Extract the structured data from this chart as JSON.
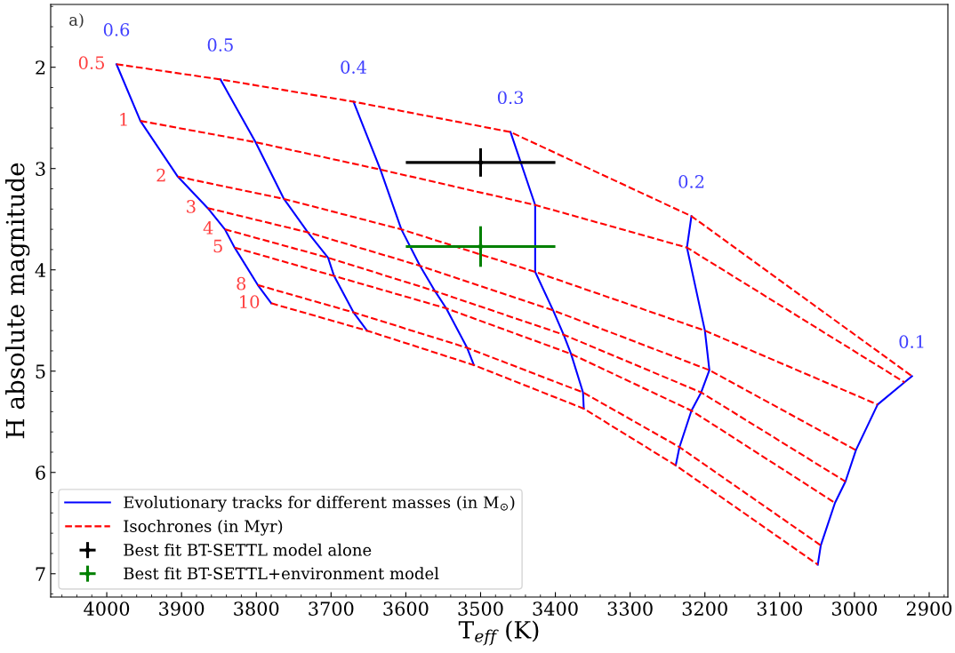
{
  "chart_data": {
    "type": "line",
    "xlabel": "T$_{eff}$ (K)",
    "ylabel": "H absolute magnitude",
    "xlim": [
      4075,
      2875
    ],
    "ylim": [
      7.23,
      1.38
    ],
    "xticks": [
      4000,
      3900,
      3800,
      3700,
      3600,
      3500,
      3400,
      3300,
      3200,
      3100,
      3000,
      2900
    ],
    "yticks": [
      2,
      3,
      4,
      5,
      6,
      7
    ],
    "grid": false,
    "legend": "bottom left",
    "marker": "none",
    "series": [
      {
        "name": "Evolutionary tracks for different masses (in M$_{⊙}$)",
        "color": "#0000ff",
        "line_style": "solid",
        "x": [
          3987,
          3955,
          3905,
          3865,
          3842,
          3829,
          3798,
          3780
        ],
        "values": [
          1.97,
          2.53,
          3.08,
          3.39,
          3.6,
          3.78,
          4.15,
          4.33
        ]
      },
      {
        "color": "#0000ff",
        "line_style": "solid",
        "x": [
          3848,
          3801,
          3763,
          3731,
          3704,
          3696,
          3670,
          3652
        ],
        "values": [
          2.12,
          2.74,
          3.3,
          3.63,
          3.88,
          4.06,
          4.42,
          4.6
        ]
      },
      {
        "color": "#0000ff",
        "line_style": "solid",
        "x": [
          3670,
          3634,
          3606,
          3581,
          3561,
          3546,
          3518,
          3509
        ],
        "values": [
          2.34,
          3.01,
          3.6,
          3.96,
          4.21,
          4.38,
          4.77,
          4.94
        ]
      },
      {
        "color": "#0000ff",
        "line_style": "solid",
        "x": [
          3460,
          3427,
          3427,
          3403,
          3389,
          3379,
          3363,
          3362
        ],
        "values": [
          2.64,
          3.36,
          4.02,
          4.4,
          4.64,
          4.83,
          5.21,
          5.37
        ]
      },
      {
        "color": "#0000ff",
        "line_style": "solid",
        "x": [
          3218,
          3224,
          3200,
          3194,
          3205,
          3218,
          3234,
          3239
        ],
        "values": [
          3.47,
          3.78,
          4.6,
          4.99,
          5.21,
          5.39,
          5.75,
          5.93
        ]
      },
      {
        "color": "#0000ff",
        "line_style": "solid",
        "x": [
          2923,
          2933,
          2969,
          2998,
          3012,
          3026,
          3045,
          3049
        ],
        "values": [
          5.05,
          5.11,
          5.33,
          5.78,
          6.09,
          6.3,
          6.72,
          6.91
        ]
      },
      {
        "name": "Isochrones (in Myr)",
        "color": "#ff0000",
        "line_style": "dashed",
        "x": [
          3987,
          3848,
          3670,
          3460,
          3218,
          2923
        ],
        "values": [
          1.97,
          2.12,
          2.34,
          2.64,
          3.47,
          5.05
        ]
      },
      {
        "color": "#ff0000",
        "line_style": "dashed",
        "x": [
          3955,
          3801,
          3634,
          3427,
          3224,
          2933
        ],
        "values": [
          2.53,
          2.74,
          3.01,
          3.36,
          3.78,
          5.11
        ]
      },
      {
        "color": "#ff0000",
        "line_style": "dashed",
        "x": [
          3905,
          3763,
          3606,
          3427,
          3200,
          2969
        ],
        "values": [
          3.08,
          3.3,
          3.6,
          4.02,
          4.6,
          5.33
        ]
      },
      {
        "color": "#ff0000",
        "line_style": "dashed",
        "x": [
          3865,
          3731,
          3581,
          3403,
          3194,
          2998
        ],
        "values": [
          3.39,
          3.63,
          3.96,
          4.4,
          4.99,
          5.78
        ]
      },
      {
        "color": "#ff0000",
        "line_style": "dashed",
        "x": [
          3842,
          3704,
          3561,
          3389,
          3205,
          3012
        ],
        "values": [
          3.6,
          3.88,
          4.21,
          4.64,
          5.21,
          6.09
        ]
      },
      {
        "color": "#ff0000",
        "line_style": "dashed",
        "x": [
          3829,
          3696,
          3546,
          3379,
          3218,
          3026
        ],
        "values": [
          3.78,
          4.06,
          4.38,
          4.83,
          5.39,
          6.3
        ]
      },
      {
        "color": "#ff0000",
        "line_style": "dashed",
        "x": [
          3798,
          3670,
          3518,
          3363,
          3234,
          3045
        ],
        "values": [
          4.15,
          4.42,
          4.77,
          5.21,
          5.75,
          6.72
        ]
      },
      {
        "color": "#ff0000",
        "line_style": "dashed",
        "x": [
          3780,
          3652,
          3509,
          3362,
          3239,
          3049
        ],
        "values": [
          4.33,
          4.6,
          4.94,
          5.37,
          5.93,
          6.91
        ]
      },
      {
        "name": "Best fit BT-SETTL model alone",
        "type": "scatter",
        "color": "#000000",
        "x": [
          3500
        ],
        "values": [
          2.94
        ],
        "xerrors": [
          100
        ],
        "errors": [
          0.14
        ]
      },
      {
        "name": "Best fit BT-SETTL+environment model",
        "type": "scatter",
        "color": "#008000",
        "x": [
          3500
        ],
        "values": [
          3.77
        ],
        "xerrors": [
          100
        ],
        "errors": [
          0.2
        ]
      }
    ],
    "annotations": [
      "a)",
      {
        "text": "0.6",
        "x": 3987,
        "y": 1.97
      },
      {
        "text": "0.5",
        "x": 3848,
        "y": 2.12
      },
      {
        "text": "0.4",
        "x": 3670,
        "y": 2.34
      },
      {
        "text": "0.3",
        "x": 3460,
        "y": 2.64
      },
      {
        "text": "0.2",
        "x": 3218,
        "y": 3.47
      },
      {
        "text": "0.1",
        "x": 2923,
        "y": 5.05
      },
      {
        "text": "0.5",
        "x": 3987,
        "y": 1.97
      },
      {
        "text": "1",
        "x": 3955,
        "y": 2.53
      },
      {
        "text": "2",
        "x": 3905,
        "y": 3.08
      },
      {
        "text": "3",
        "x": 3865,
        "y": 3.39
      },
      {
        "text": "4",
        "x": 3842,
        "y": 3.6
      },
      {
        "text": "5",
        "x": 3829,
        "y": 3.78
      },
      {
        "text": "8",
        "x": 3798,
        "y": 4.15
      },
      {
        "text": "10",
        "x": 3780,
        "y": 4.33
      }
    ]
  }
}
